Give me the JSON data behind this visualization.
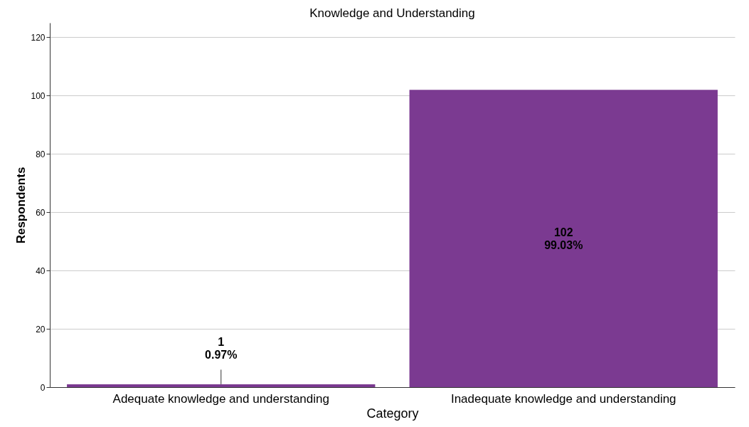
{
  "chart_data": {
    "type": "bar",
    "title": "Knowledge and Understanding",
    "xlabel": "Category",
    "ylabel": "Respondents",
    "categories": [
      "Adequate knowledge and understanding",
      "Inadequate knowledge and understanding"
    ],
    "values": [
      1,
      102
    ],
    "color": "#7b3a91",
    "value_labels": [
      "1\n0.97%",
      "102\n99.03%"
    ],
    "ylim": [
      0,
      125
    ],
    "yticks": [
      0,
      20,
      40,
      60,
      80,
      100,
      120
    ],
    "grid": "y"
  }
}
